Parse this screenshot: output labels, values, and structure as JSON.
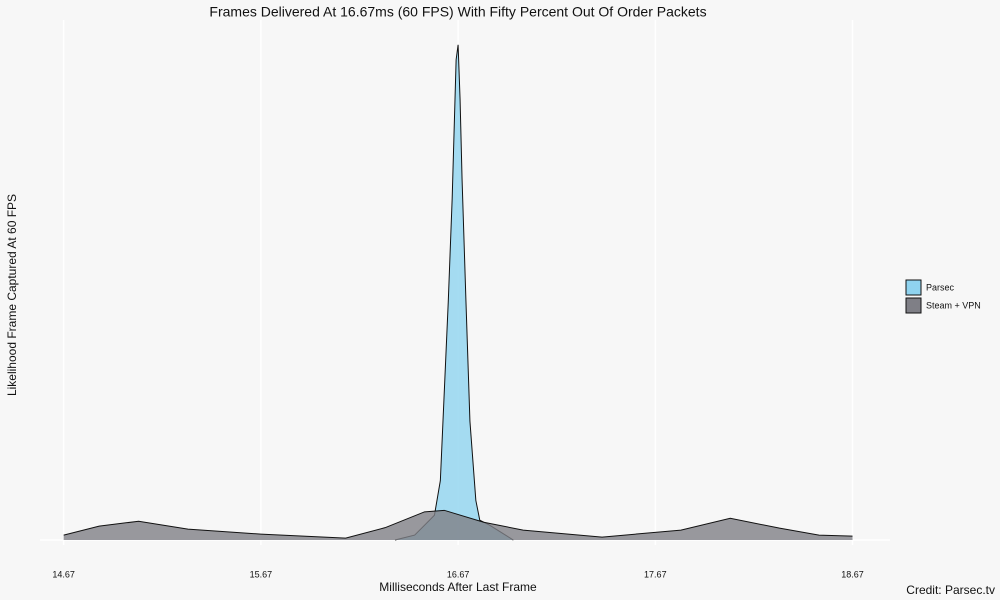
{
  "chart_data": {
    "type": "area",
    "title": "Frames Delivered At 16.67ms (60 FPS) With Fifty Percent Out Of Order Packets",
    "x_label": "Milliseconds After Last Frame",
    "y_label": "Likelihood Frame Captured At 60 FPS",
    "credit": "Credit: Parsec.tv",
    "xlim": [
      14.55,
      18.86
    ],
    "ylim": [
      -0.01,
      1.05
    ],
    "xticks": [
      14.67,
      15.67,
      16.67,
      17.67,
      18.67
    ],
    "grid": true,
    "legend": "right",
    "series": [
      {
        "name": "Parsec",
        "color": "#8fd3ef",
        "x": [
          16.35,
          16.45,
          16.5,
          16.55,
          16.58,
          16.62,
          16.64,
          16.66,
          16.67,
          16.68,
          16.69,
          16.71,
          16.73,
          16.76,
          16.78,
          16.83,
          16.91,
          16.95
        ],
        "values": [
          0,
          0.01,
          0.03,
          0.05,
          0.12,
          0.48,
          0.69,
          0.97,
          1.0,
          0.89,
          0.73,
          0.48,
          0.24,
          0.08,
          0.04,
          0.03,
          0.01,
          0
        ]
      },
      {
        "name": "Steam + VPN",
        "color": "#7f7f86",
        "x": [
          14.67,
          14.85,
          15.05,
          15.3,
          15.67,
          16.1,
          16.3,
          16.5,
          16.6,
          16.8,
          17.0,
          17.4,
          17.8,
          18.05,
          18.3,
          18.5,
          18.67
        ],
        "values": [
          0.01,
          0.028,
          0.038,
          0.022,
          0.012,
          0.004,
          0.025,
          0.057,
          0.06,
          0.036,
          0.02,
          0.006,
          0.02,
          0.044,
          0.024,
          0.01,
          0.008
        ]
      }
    ]
  }
}
